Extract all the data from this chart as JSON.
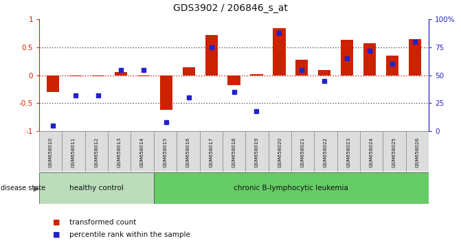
{
  "title": "GDS3902 / 206846_s_at",
  "samples": [
    "GSM658010",
    "GSM658011",
    "GSM658012",
    "GSM658013",
    "GSM658014",
    "GSM658015",
    "GSM658016",
    "GSM658017",
    "GSM658018",
    "GSM658019",
    "GSM658020",
    "GSM658021",
    "GSM658022",
    "GSM658023",
    "GSM658024",
    "GSM658025",
    "GSM658026"
  ],
  "transformed_count": [
    -0.3,
    -0.02,
    -0.02,
    0.06,
    -0.02,
    -0.62,
    0.14,
    0.72,
    -0.18,
    0.02,
    0.85,
    0.28,
    0.1,
    0.63,
    0.57,
    0.35,
    0.65
  ],
  "percentile_rank": [
    5,
    32,
    32,
    55,
    55,
    8,
    30,
    75,
    35,
    18,
    88,
    55,
    45,
    65,
    72,
    60,
    80
  ],
  "group_labels": [
    "healthy control",
    "chronic B-lymphocytic leukemia"
  ],
  "n_group1": 5,
  "bar_color": "#cc2200",
  "dot_color": "#2222cc",
  "bg_color": "#ffffff",
  "plot_bg": "#ffffff",
  "ylim_left": [
    -1,
    1
  ],
  "ylim_right": [
    0,
    100
  ],
  "yticks_left": [
    1,
    0.5,
    0,
    -0.5,
    -1
  ],
  "ytick_labels_left": [
    "1",
    "0.5",
    "0",
    "-0.5",
    "-1"
  ],
  "yticks_right": [
    100,
    75,
    50,
    25,
    0
  ],
  "ytick_labels_right": [
    "100%",
    "75",
    "50",
    "25",
    "0"
  ],
  "group1_color": "#bbddbb",
  "group2_color": "#66cc66",
  "cell_color": "#dddddd",
  "cell_edge_color": "#888888",
  "legend_labels": [
    "transformed count",
    "percentile rank within the sample"
  ]
}
